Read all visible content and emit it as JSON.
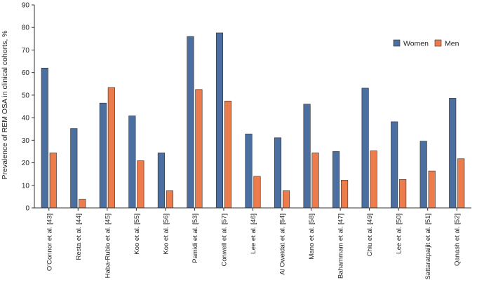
{
  "chart_data": {
    "type": "bar",
    "ylabel": "Prevalence of REM OSA in clinical cohorts, %",
    "xlabel": "",
    "ylim": [
      0,
      90
    ],
    "yticks": [
      0,
      10,
      20,
      30,
      40,
      50,
      60,
      70,
      80,
      90
    ],
    "grid": false,
    "legend_position": "top-right",
    "categories": [
      "O'Connor et al. [43]",
      "Resta et al. [44]",
      "Haba-Rubio et al. [45]",
      "Koo et al. [55]",
      "Koo et al. [56]",
      "Pamidi et al. [53]",
      "Conwell et al. [57]",
      "Lee et al. [46]",
      "Al Oweidat et al. [54]",
      "Mano et al. [58]",
      "Bahammam et al. [47]",
      "Chiu et al. [49]",
      "Lee et al. [50]",
      "Sattaratpaijit et al. [51]",
      "Qanash et al. [52]"
    ],
    "series": [
      {
        "name": "Women",
        "color": "#4a6fa0",
        "values": [
          62,
          35.2,
          46.5,
          40.8,
          24.4,
          76,
          77.6,
          32.8,
          31.1,
          46,
          25,
          53.1,
          38.2,
          29.6,
          48.6
        ]
      },
      {
        "name": "Men",
        "color": "#ec7c4c",
        "values": [
          24.4,
          3.9,
          53.4,
          20.9,
          7.6,
          52.5,
          47.4,
          14,
          7.6,
          24.4,
          12.3,
          25.3,
          12.6,
          16.4,
          21.8
        ]
      }
    ]
  }
}
